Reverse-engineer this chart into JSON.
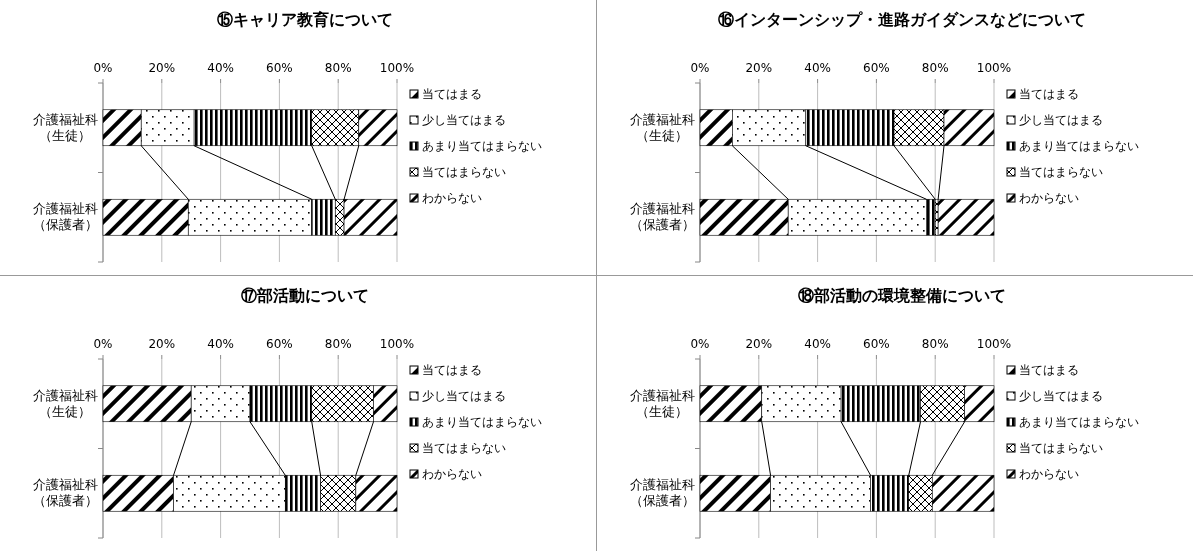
{
  "chart_data": [
    {
      "type": "bar",
      "orientation": "horizontal",
      "stacked": true,
      "title": "⑮キャリア教育について",
      "categories": [
        "介護福祉科（生徒）",
        "介護福祉科（保護者）"
      ],
      "xlim": [
        0,
        100
      ],
      "xticks": [
        {
          "value": 0,
          "label": "0%"
        },
        {
          "value": 20,
          "label": "20%"
        },
        {
          "value": 40,
          "label": "40%"
        },
        {
          "value": 60,
          "label": "60%"
        },
        {
          "value": 80,
          "label": "80%"
        },
        {
          "value": 100,
          "label": "100%"
        }
      ],
      "grid": "x",
      "legend": "right",
      "series": [
        {
          "name": "当てはまる",
          "color": "#000000",
          "values": [
            13,
            29
          ]
        },
        {
          "name": "少し当てはまる",
          "color": "#000000",
          "values": [
            18,
            42
          ]
        },
        {
          "name": "あまり当てはまらない",
          "color": "#000000",
          "values": [
            40,
            8
          ]
        },
        {
          "name": "当てはまらない",
          "color": "#000000",
          "values": [
            16,
            3
          ]
        },
        {
          "name": "わからない",
          "color": "#000000",
          "values": [
            13,
            18
          ]
        }
      ]
    },
    {
      "type": "bar",
      "orientation": "horizontal",
      "stacked": true,
      "title": "⑯インターンシップ・進路ガイダンスなどについて",
      "categories": [
        "介護福祉科（生徒）",
        "介護福祉科（保護者）"
      ],
      "xlim": [
        0,
        100
      ],
      "xticks": [
        {
          "value": 0,
          "label": "0%"
        },
        {
          "value": 20,
          "label": "20%"
        },
        {
          "value": 40,
          "label": "40%"
        },
        {
          "value": 60,
          "label": "60%"
        },
        {
          "value": 80,
          "label": "80%"
        },
        {
          "value": 100,
          "label": "100%"
        }
      ],
      "grid": "x",
      "legend": "right",
      "series": [
        {
          "name": "当てはまる",
          "color": "#000000",
          "values": [
            11,
            30
          ]
        },
        {
          "name": "少し当てはまる",
          "color": "#000000",
          "values": [
            25,
            47
          ]
        },
        {
          "name": "あまり当てはまらない",
          "color": "#000000",
          "values": [
            30,
            3
          ]
        },
        {
          "name": "当てはまらない",
          "color": "#000000",
          "values": [
            17,
            1
          ]
        },
        {
          "name": "わからない",
          "color": "#000000",
          "values": [
            17,
            19
          ]
        }
      ]
    },
    {
      "type": "bar",
      "orientation": "horizontal",
      "stacked": true,
      "title": "⑰部活動について",
      "categories": [
        "介護福祉科（生徒）",
        "介護福祉科（保護者）"
      ],
      "xlim": [
        0,
        100
      ],
      "xticks": [
        {
          "value": 0,
          "label": "0%"
        },
        {
          "value": 20,
          "label": "20%"
        },
        {
          "value": 40,
          "label": "40%"
        },
        {
          "value": 60,
          "label": "60%"
        },
        {
          "value": 80,
          "label": "80%"
        },
        {
          "value": 100,
          "label": "100%"
        }
      ],
      "grid": "x",
      "legend": "right",
      "series": [
        {
          "name": "当てはまる",
          "color": "#000000",
          "values": [
            30,
            24
          ]
        },
        {
          "name": "少し当てはまる",
          "color": "#000000",
          "values": [
            20,
            38
          ]
        },
        {
          "name": "あまり当てはまらない",
          "color": "#000000",
          "values": [
            21,
            12
          ]
        },
        {
          "name": "当てはまらない",
          "color": "#000000",
          "values": [
            21,
            12
          ]
        },
        {
          "name": "わからない",
          "color": "#000000",
          "values": [
            8,
            14
          ]
        }
      ]
    },
    {
      "type": "bar",
      "orientation": "horizontal",
      "stacked": true,
      "title": "⑱部活動の環境整備について",
      "categories": [
        "介護福祉科（生徒）",
        "介護福祉科（保護者）"
      ],
      "xlim": [
        0,
        100
      ],
      "xticks": [
        {
          "value": 0,
          "label": "0%"
        },
        {
          "value": 20,
          "label": "20%"
        },
        {
          "value": 40,
          "label": "40%"
        },
        {
          "value": 60,
          "label": "60%"
        },
        {
          "value": 80,
          "label": "80%"
        },
        {
          "value": 100,
          "label": "100%"
        }
      ],
      "grid": "x",
      "legend": "right",
      "series": [
        {
          "name": "当てはまる",
          "color": "#000000",
          "values": [
            21,
            24
          ]
        },
        {
          "name": "少し当てはまる",
          "color": "#000000",
          "values": [
            27,
            34
          ]
        },
        {
          "name": "あまり当てはまらない",
          "color": "#000000",
          "values": [
            27,
            13
          ]
        },
        {
          "name": "当てはまらない",
          "color": "#000000",
          "values": [
            15,
            8
          ]
        },
        {
          "name": "わからない",
          "color": "#000000",
          "values": [
            10,
            21
          ]
        }
      ]
    }
  ]
}
